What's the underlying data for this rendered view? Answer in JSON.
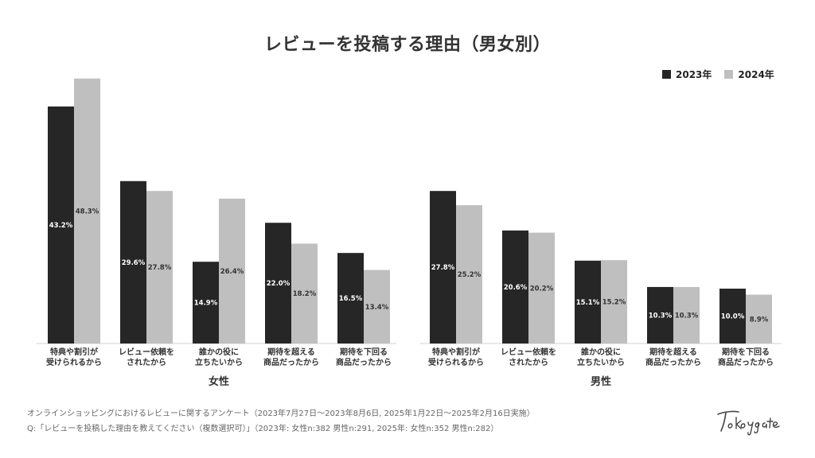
{
  "title": "レビューを投稿する理由（男女別）",
  "legend": [
    {
      "label": "2023年",
      "color": "#262626"
    },
    {
      "label": "2024年",
      "color": "#bfbfbf"
    }
  ],
  "chart_data": [
    {
      "type": "bar",
      "group_label": "女性",
      "categories": [
        [
          "特典や割引が",
          "受けられるから"
        ],
        [
          "レビュー依頼を",
          "されたから"
        ],
        [
          "誰かの役に",
          "立ちたいから"
        ],
        [
          "期待を超える",
          "商品だったから"
        ],
        [
          "期待を下回る",
          "商品だったから"
        ]
      ],
      "series": [
        {
          "name": "2023年",
          "color": "#262626",
          "values": [
            43.2,
            29.6,
            14.9,
            22.0,
            16.5
          ],
          "labels": [
            "43.2%",
            "29.6%",
            "14.9%",
            "22.0%",
            "16.5%"
          ]
        },
        {
          "name": "2024年",
          "color": "#bfbfbf",
          "values": [
            48.3,
            27.8,
            26.4,
            18.2,
            13.4
          ],
          "labels": [
            "48.3%",
            "27.8%",
            "26.4%",
            "18.2%",
            "13.4%"
          ]
        }
      ]
    },
    {
      "type": "bar",
      "group_label": "男性",
      "categories": [
        [
          "特典や割引が",
          "受けられるから"
        ],
        [
          "レビュー依頼を",
          "されたから"
        ],
        [
          "誰かの役に",
          "立ちたいから"
        ],
        [
          "期待を超える",
          "商品だったから"
        ],
        [
          "期待を下回る",
          "商品だったから"
        ]
      ],
      "series": [
        {
          "name": "2023年",
          "color": "#262626",
          "values": [
            27.8,
            20.6,
            15.1,
            10.3,
            10.0
          ],
          "labels": [
            "27.8%",
            "20.6%",
            "15.1%",
            "10.3%",
            "10.0%"
          ]
        },
        {
          "name": "2024年",
          "color": "#bfbfbf",
          "values": [
            25.2,
            20.2,
            15.2,
            10.3,
            8.9
          ],
          "labels": [
            "25.2%",
            "20.2%",
            "15.2%",
            "10.3%",
            "8.9%"
          ]
        }
      ]
    }
  ],
  "footnotes": {
    "line1": "オンラインショッピングにおけるレビューに関するアンケート（2023年7月27日〜2023年8月6日, 2025年1月22日〜2025年2月16日実施）",
    "line2": "Q:「レビューを投稿した理由を教えてください（複数選択可）」（2023年: 女性n:382 男性n:291, 2025年: 女性n:352 男性n:282）"
  },
  "logo_text": "Tokyo gate"
}
